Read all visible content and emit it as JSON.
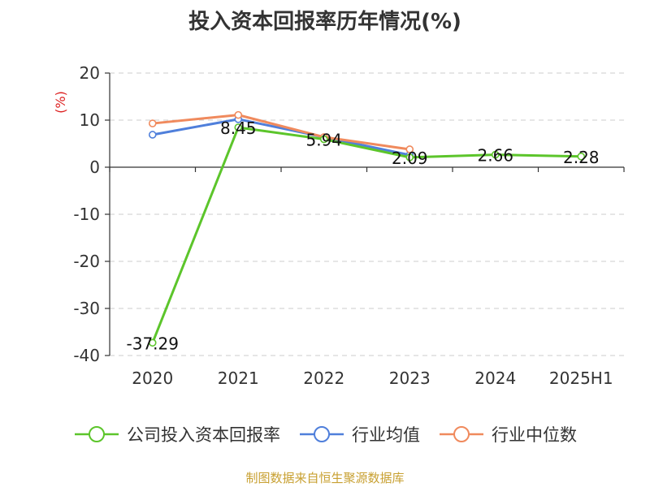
{
  "chart_data": {
    "type": "line",
    "title": "投入资本回报率历年情况(%)",
    "ylabel": "(%)",
    "xlabel": "",
    "categories": [
      "2020",
      "2021",
      "2022",
      "2023",
      "2024",
      "2025H1"
    ],
    "ylim": [
      -40,
      20
    ],
    "yticks": [
      20,
      10,
      0,
      -10,
      -20,
      -30,
      -40
    ],
    "grid": true,
    "legend_position": "bottom",
    "series": [
      {
        "name": "公司投入资本回报率",
        "color": "#5cc52b",
        "values": [
          -37.29,
          8.45,
          5.94,
          2.09,
          2.66,
          2.28
        ],
        "labels": [
          "-37.29",
          "8.45",
          "5.94",
          "2.09",
          "2.66",
          "2.28"
        ]
      },
      {
        "name": "行业均值",
        "color": "#4f7fdb",
        "values": [
          6.9,
          10.2,
          null,
          2.6,
          null,
          null
        ]
      },
      {
        "name": "行业中位数",
        "color": "#f08a5d",
        "values": [
          9.3,
          11.1,
          6.4,
          3.8,
          null,
          null
        ]
      }
    ]
  },
  "footer": {
    "source": "制图数据来自恒生聚源数据库"
  }
}
